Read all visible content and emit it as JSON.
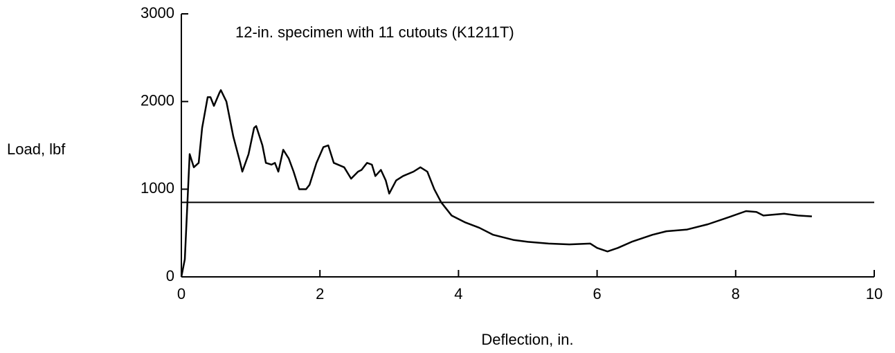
{
  "chart_data": {
    "type": "line",
    "annotation": "12-in. specimen with 11 cutouts (K1211T)",
    "x_label": "Deflection, in.",
    "y_label": "Load, lbf",
    "xlim": [
      0,
      10
    ],
    "xticks": [
      0,
      2,
      4,
      6,
      8,
      10
    ],
    "ylim": [
      0,
      3000
    ],
    "yticks": [
      0,
      1000,
      2000,
      3000
    ],
    "reference_line": 850,
    "color": "#000000",
    "x": [
      0,
      0.05,
      0.12,
      0.18,
      0.25,
      0.3,
      0.38,
      0.42,
      0.47,
      0.55,
      0.57,
      0.65,
      0.75,
      0.85,
      0.88,
      0.97,
      1.05,
      1.08,
      1.17,
      1.22,
      1.3,
      1.35,
      1.4,
      1.47,
      1.55,
      1.62,
      1.7,
      1.8,
      1.85,
      1.95,
      2.05,
      2.12,
      2.2,
      2.35,
      2.45,
      2.55,
      2.6,
      2.68,
      2.75,
      2.8,
      2.88,
      2.95,
      3.0,
      3.1,
      3.2,
      3.35,
      3.45,
      3.55,
      3.65,
      3.75,
      3.9,
      4.1,
      4.3,
      4.5,
      4.8,
      5.0,
      5.3,
      5.6,
      5.9,
      6.0,
      6.15,
      6.3,
      6.5,
      6.8,
      7.0,
      7.3,
      7.6,
      7.9,
      8.15,
      8.3,
      8.4,
      8.7,
      8.9,
      9.1
    ],
    "values": [
      0,
      200,
      1400,
      1250,
      1300,
      1700,
      2050,
      2050,
      1950,
      2100,
      2130,
      2000,
      1600,
      1300,
      1200,
      1400,
      1700,
      1720,
      1500,
      1300,
      1280,
      1300,
      1200,
      1450,
      1350,
      1200,
      1000,
      1000,
      1050,
      1300,
      1480,
      1500,
      1300,
      1250,
      1120,
      1200,
      1220,
      1300,
      1280,
      1150,
      1220,
      1100,
      950,
      1100,
      1150,
      1200,
      1250,
      1200,
      1000,
      850,
      700,
      620,
      560,
      480,
      420,
      400,
      380,
      370,
      380,
      330,
      290,
      330,
      400,
      480,
      520,
      540,
      600,
      680,
      750,
      740,
      700,
      720,
      700,
      690
    ]
  }
}
